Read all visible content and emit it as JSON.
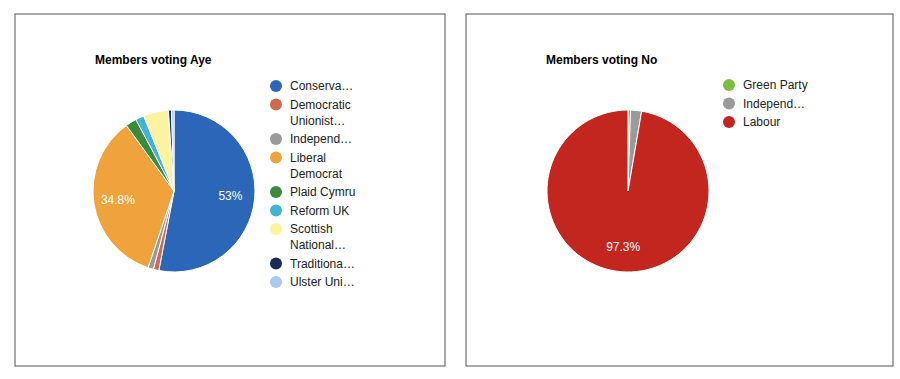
{
  "chart_data": [
    {
      "type": "pie",
      "title": "Members voting Aye",
      "categories": [
        "Conserva…",
        "Democratic Unionist…",
        "Independ…",
        "Liberal Democrat",
        "Plaid Cymru",
        "Reform UK",
        "Scottish National…",
        "Traditiona…",
        "Ulster Uni…"
      ],
      "values": [
        53,
        1.1,
        1.1,
        34.8,
        2.2,
        1.7,
        5.0,
        0.6,
        0.5
      ],
      "value_labels": [
        "53%",
        null,
        null,
        "34.8%",
        null,
        null,
        null,
        null,
        null
      ],
      "colors": [
        "#2b66b9",
        "#d06a4c",
        "#9a9a9a",
        "#f0a33c",
        "#3b8b3d",
        "#40b4d2",
        "#fbf3a0",
        "#1b2b5c",
        "#a9c9ee"
      ],
      "data_labels": true,
      "legend": "right"
    },
    {
      "type": "pie",
      "title": "Members voting No",
      "categories": [
        "Green Party",
        "Independ…",
        "Labour"
      ],
      "values": [
        0.5,
        2.2,
        97.3
      ],
      "value_labels": [
        null,
        null,
        "97.3%"
      ],
      "colors": [
        "#7cbf3e",
        "#9a9a9a",
        "#c3261f"
      ],
      "data_labels": true,
      "legend": "right"
    }
  ]
}
